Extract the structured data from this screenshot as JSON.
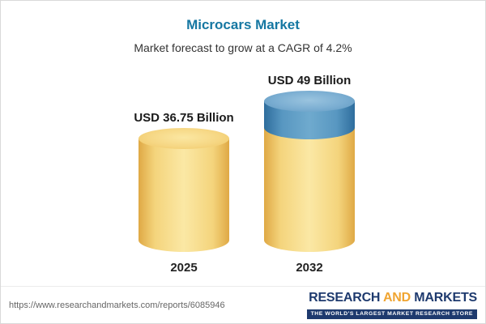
{
  "header": {
    "title": "Microcars Market",
    "subtitle": "Market forecast to grow at a CAGR of 4.2%"
  },
  "chart_data": {
    "type": "bar",
    "title": "Microcars Market",
    "subtitle": "Market forecast to grow at a CAGR of 4.2%",
    "categories": [
      "2025",
      "2032"
    ],
    "values": [
      36.75,
      49
    ],
    "value_labels": [
      "USD 36.75 Billion",
      "USD 49 Billion"
    ],
    "unit": "USD Billion",
    "cagr": "4.2%",
    "ylim": [
      0,
      49
    ],
    "legend": "none",
    "grid": false,
    "colors": {
      "bar_base_yellow": "#F3CC6E",
      "bar_growth_blue": "#4C8BB8",
      "title_blue": "#1577A2"
    }
  },
  "footer": {
    "source_url": "https://www.researchandmarkets.com/reports/6085946",
    "logo": {
      "word_research": "RESEARCH",
      "word_and": "AND",
      "word_markets": "MARKETS",
      "tagline": "THE WORLD'S LARGEST MARKET RESEARCH STORE"
    }
  }
}
